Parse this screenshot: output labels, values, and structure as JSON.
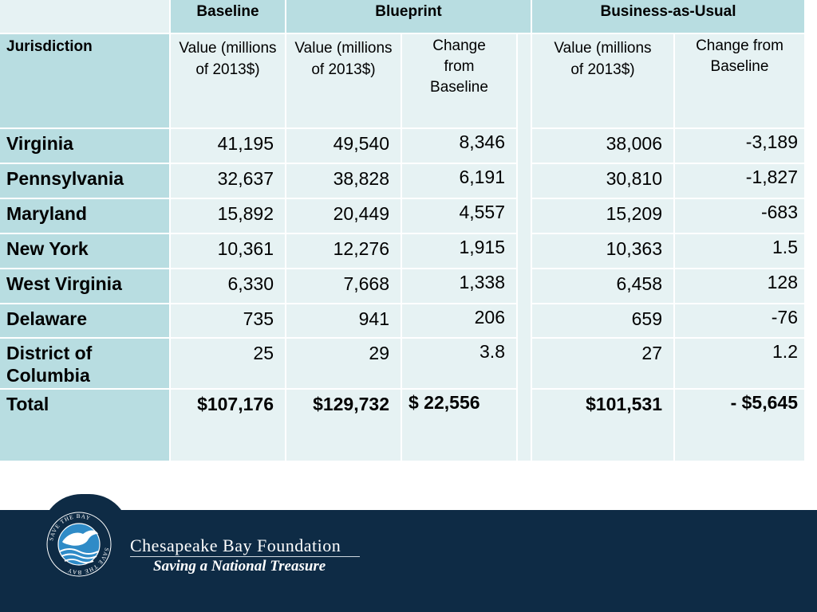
{
  "table": {
    "group_headers": {
      "baseline": "Baseline",
      "blueprint": "Blueprint",
      "bau": "Business-as-Usual"
    },
    "columns": {
      "jurisdiction": "Jurisdiction",
      "baseline_value": "Value (millions of 2013$)",
      "blueprint_value": "Value (millions of 2013$)",
      "blueprint_change": "Change from Baseline",
      "bau_value": "Value (millions of 2013$)",
      "bau_change": "Change from Baseline"
    },
    "rows": [
      {
        "jurisdiction": "Virginia",
        "baseline": "41,195",
        "blueprint": "49,540",
        "blueprint_change": "8,346",
        "bau": "38,006",
        "bau_change": "-3,189"
      },
      {
        "jurisdiction": "Pennsylvania",
        "baseline": "32,637",
        "blueprint": "38,828",
        "blueprint_change": "6,191",
        "bau": "30,810",
        "bau_change": "-1,827"
      },
      {
        "jurisdiction": "Maryland",
        "baseline": "15,892",
        "blueprint": "20,449",
        "blueprint_change": "4,557",
        "bau": "15,209",
        "bau_change": "-683"
      },
      {
        "jurisdiction": "New York",
        "baseline": "10,361",
        "blueprint": "12,276",
        "blueprint_change": "1,915",
        "bau": "10,363",
        "bau_change": "1.5"
      },
      {
        "jurisdiction": "West Virginia",
        "baseline": "6,330",
        "blueprint": "7,668",
        "blueprint_change": "1,338",
        "bau": "6,458",
        "bau_change": "128"
      },
      {
        "jurisdiction": "Delaware",
        "baseline": "735",
        "blueprint": "941",
        "blueprint_change": "206",
        "bau": "659",
        "bau_change": "-76"
      },
      {
        "jurisdiction": "District of Columbia",
        "baseline": "25",
        "blueprint": "29",
        "blueprint_change": "3.8",
        "bau": "27",
        "bau_change": "1.2"
      }
    ],
    "total": {
      "jurisdiction": "Total",
      "baseline": "$107,176",
      "blueprint": "$129,732",
      "blueprint_change": "$ 22,556",
      "bau": "$101,531",
      "bau_change": "- $5,645"
    }
  },
  "footer": {
    "org_name": "Chesapeake Bay Foundation",
    "tagline": "Saving a National Treasure",
    "logo_text": "SAVE THE BAY"
  },
  "colors": {
    "footer_bg": "#0e2b45",
    "cell_dark": "#b8dde1",
    "cell_light": "#e6f2f3"
  }
}
